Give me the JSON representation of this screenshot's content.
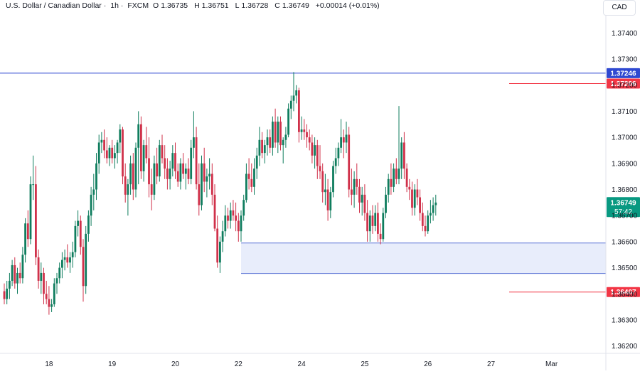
{
  "header": {
    "symbol": "U.S. Dollar / Canadian Dollar",
    "interval": "1h",
    "exchange": "FXCM",
    "open_label": "O",
    "open": "1.36735",
    "high_label": "H",
    "high": "1.36751",
    "low_label": "L",
    "low": "1.36728",
    "close_label": "C",
    "close": "1.36749",
    "change": "+0.00014 (+0.01%)"
  },
  "currency_button": "CAD",
  "colors": {
    "up": "#0f7d5e",
    "down": "#d0314a",
    "zone": "#e8edfb",
    "zone_line": "#5b73d6",
    "level_blue": "#2f49d1",
    "level_red": "#f23645",
    "price_green": "#089981"
  },
  "chart_data": {
    "type": "candlestick",
    "y_ticks": [
      "1.36200",
      "1.36300",
      "1.36400",
      "1.36500",
      "1.36600",
      "1.36700",
      "1.36800",
      "1.36900",
      "1.37000",
      "1.37100",
      "1.37200",
      "1.37300",
      "1.37400"
    ],
    "ylim": [
      1.3615,
      1.3745
    ],
    "x_labels": [
      {
        "label": "18",
        "index": 17
      },
      {
        "label": "19",
        "index": 41
      },
      {
        "label": "20",
        "index": 65
      },
      {
        "label": "22",
        "index": 89
      },
      {
        "label": "24",
        "index": 113
      },
      {
        "label": "25",
        "index": 137
      },
      {
        "label": "26",
        "index": 161
      },
      {
        "label": "27",
        "index": 185
      },
      {
        "label": "Mar",
        "index": 208
      }
    ],
    "horizontal_lines": [
      {
        "value": 1.37246,
        "label": "1.37246",
        "color": "blue",
        "span": "full"
      },
      {
        "value": 1.37206,
        "label": "1.37206",
        "color": "red",
        "span": "right"
      },
      {
        "value": 1.36407,
        "label": "1.36407",
        "color": "red",
        "span": "right"
      }
    ],
    "zone": {
      "top": 1.36595,
      "bottom": 1.36478,
      "start_index": 90
    },
    "last_price": {
      "value": 1.36749,
      "label": "1.36749",
      "countdown": "57:42"
    },
    "candles": [
      [
        1.3641,
        1.3644,
        1.3636,
        1.3638
      ],
      [
        1.3638,
        1.3645,
        1.3636,
        1.3642
      ],
      [
        1.3642,
        1.3648,
        1.3638,
        1.3645
      ],
      [
        1.3645,
        1.3653,
        1.3643,
        1.3651
      ],
      [
        1.3651,
        1.3654,
        1.3642,
        1.3644
      ],
      [
        1.3644,
        1.365,
        1.364,
        1.3648
      ],
      [
        1.3648,
        1.3652,
        1.3644,
        1.3646
      ],
      [
        1.3646,
        1.3658,
        1.3644,
        1.3655
      ],
      [
        1.3655,
        1.3669,
        1.3652,
        1.3667
      ],
      [
        1.3667,
        1.3672,
        1.3658,
        1.3661
      ],
      [
        1.3661,
        1.3685,
        1.3659,
        1.3682
      ],
      [
        1.3682,
        1.3693,
        1.3676,
        1.3682
      ],
      [
        1.3682,
        1.3689,
        1.3651,
        1.3654
      ],
      [
        1.3654,
        1.3657,
        1.3642,
        1.3645
      ],
      [
        1.3645,
        1.3652,
        1.364,
        1.3648
      ],
      [
        1.3648,
        1.365,
        1.3636,
        1.364
      ],
      [
        1.364,
        1.3645,
        1.3636,
        1.3638
      ],
      [
        1.3638,
        1.3643,
        1.3632,
        1.3635
      ],
      [
        1.3635,
        1.3638,
        1.3633,
        1.3636
      ],
      [
        1.3636,
        1.3646,
        1.3635,
        1.3644
      ],
      [
        1.3644,
        1.3648,
        1.364,
        1.3646
      ],
      [
        1.3646,
        1.3652,
        1.3644,
        1.365
      ],
      [
        1.365,
        1.3656,
        1.3646,
        1.3653
      ],
      [
        1.3653,
        1.3657,
        1.3649,
        1.3654
      ],
      [
        1.3654,
        1.3659,
        1.365,
        1.3652
      ],
      [
        1.3652,
        1.3656,
        1.3648,
        1.3654
      ],
      [
        1.3654,
        1.366,
        1.365,
        1.3656
      ],
      [
        1.3656,
        1.3668,
        1.3654,
        1.3666
      ],
      [
        1.3666,
        1.3672,
        1.3662,
        1.3668
      ],
      [
        1.3668,
        1.367,
        1.3655,
        1.3658
      ],
      [
        1.3658,
        1.3661,
        1.3637,
        1.3643
      ],
      [
        1.3643,
        1.3666,
        1.364,
        1.3663
      ],
      [
        1.3663,
        1.3672,
        1.366,
        1.367
      ],
      [
        1.367,
        1.3681,
        1.3666,
        1.3678
      ],
      [
        1.3678,
        1.3686,
        1.3672,
        1.368
      ],
      [
        1.368,
        1.3694,
        1.3676,
        1.369
      ],
      [
        1.369,
        1.3701,
        1.3686,
        1.3698
      ],
      [
        1.3698,
        1.3702,
        1.3694,
        1.3699
      ],
      [
        1.3699,
        1.3703,
        1.3692,
        1.3695
      ],
      [
        1.3695,
        1.37,
        1.369,
        1.3692
      ],
      [
        1.3692,
        1.3697,
        1.3689,
        1.3696
      ],
      [
        1.3696,
        1.3699,
        1.369,
        1.3692
      ],
      [
        1.3692,
        1.3697,
        1.3688,
        1.3694
      ],
      [
        1.3694,
        1.3699,
        1.369,
        1.3698
      ],
      [
        1.3698,
        1.3705,
        1.3694,
        1.3703
      ],
      [
        1.3703,
        1.3704,
        1.3682,
        1.3685
      ],
      [
        1.3685,
        1.369,
        1.3675,
        1.3678
      ],
      [
        1.3678,
        1.3684,
        1.367,
        1.3682
      ],
      [
        1.3682,
        1.3693,
        1.3678,
        1.369
      ],
      [
        1.369,
        1.3694,
        1.3676,
        1.368
      ],
      [
        1.368,
        1.3698,
        1.3677,
        1.3696
      ],
      [
        1.3696,
        1.371,
        1.3682,
        1.3705
      ],
      [
        1.3705,
        1.3708,
        1.3684,
        1.3687
      ],
      [
        1.3687,
        1.3699,
        1.3683,
        1.3697
      ],
      [
        1.3697,
        1.3704,
        1.369,
        1.3692
      ],
      [
        1.3692,
        1.37,
        1.3677,
        1.3682
      ],
      [
        1.3682,
        1.3688,
        1.3672,
        1.3678
      ],
      [
        1.3678,
        1.3693,
        1.3676,
        1.369
      ],
      [
        1.369,
        1.3696,
        1.3682,
        1.3685
      ],
      [
        1.3685,
        1.3699,
        1.3683,
        1.3697
      ],
      [
        1.3697,
        1.3701,
        1.369,
        1.3692
      ],
      [
        1.3692,
        1.3697,
        1.3684,
        1.3688
      ],
      [
        1.3688,
        1.3692,
        1.368,
        1.3684
      ],
      [
        1.3684,
        1.3691,
        1.368,
        1.3688
      ],
      [
        1.3688,
        1.3697,
        1.3685,
        1.3694
      ],
      [
        1.3694,
        1.3698,
        1.3684,
        1.3687
      ],
      [
        1.3687,
        1.369,
        1.3681,
        1.3683
      ],
      [
        1.3683,
        1.3692,
        1.368,
        1.369
      ],
      [
        1.369,
        1.3694,
        1.3684,
        1.3686
      ],
      [
        1.3686,
        1.369,
        1.368,
        1.3688
      ],
      [
        1.3688,
        1.3692,
        1.3682,
        1.3684
      ],
      [
        1.3684,
        1.3699,
        1.3682,
        1.3696
      ],
      [
        1.3696,
        1.371,
        1.3692,
        1.37
      ],
      [
        1.37,
        1.3704,
        1.368,
        1.3682
      ],
      [
        1.3682,
        1.369,
        1.367,
        1.3674
      ],
      [
        1.3674,
        1.3693,
        1.3672,
        1.369
      ],
      [
        1.369,
        1.3696,
        1.3679,
        1.3683
      ],
      [
        1.3683,
        1.3688,
        1.3677,
        1.3685
      ],
      [
        1.3685,
        1.3692,
        1.368,
        1.3686
      ],
      [
        1.3686,
        1.369,
        1.3674,
        1.3678
      ],
      [
        1.3678,
        1.3682,
        1.3664,
        1.3665
      ],
      [
        1.3665,
        1.367,
        1.365,
        1.3652
      ],
      [
        1.3652,
        1.3662,
        1.3648,
        1.366
      ],
      [
        1.366,
        1.3668,
        1.3656,
        1.3664
      ],
      [
        1.3664,
        1.3674,
        1.3662,
        1.367
      ],
      [
        1.367,
        1.3673,
        1.3665,
        1.3668
      ],
      [
        1.3668,
        1.3675,
        1.3665,
        1.3672
      ],
      [
        1.3672,
        1.3676,
        1.3668,
        1.367
      ],
      [
        1.367,
        1.3675,
        1.3664,
        1.3668
      ],
      [
        1.3668,
        1.3671,
        1.366,
        1.3664
      ],
      [
        1.3664,
        1.3672,
        1.366,
        1.367
      ],
      [
        1.367,
        1.3678,
        1.3668,
        1.3676
      ],
      [
        1.3676,
        1.369,
        1.3675,
        1.3686
      ],
      [
        1.3686,
        1.3692,
        1.368,
        1.3684
      ],
      [
        1.3684,
        1.369,
        1.3679,
        1.3681
      ],
      [
        1.3681,
        1.3692,
        1.3678,
        1.3688
      ],
      [
        1.3688,
        1.3696,
        1.3684,
        1.3693
      ],
      [
        1.3693,
        1.3704,
        1.3689,
        1.3699
      ],
      [
        1.3699,
        1.3702,
        1.3692,
        1.3694
      ],
      [
        1.3694,
        1.3699,
        1.369,
        1.3697
      ],
      [
        1.3697,
        1.3703,
        1.3693,
        1.37
      ],
      [
        1.37,
        1.3703,
        1.3694,
        1.3696
      ],
      [
        1.3696,
        1.3708,
        1.3693,
        1.3706
      ],
      [
        1.3706,
        1.3711,
        1.3696,
        1.3698
      ],
      [
        1.3698,
        1.3708,
        1.3694,
        1.3706
      ],
      [
        1.3706,
        1.3708,
        1.3695,
        1.3697
      ],
      [
        1.3697,
        1.37,
        1.369,
        1.3699
      ],
      [
        1.3699,
        1.3704,
        1.3696,
        1.3701
      ],
      [
        1.3701,
        1.3713,
        1.37,
        1.3711
      ],
      [
        1.3711,
        1.3716,
        1.3707,
        1.3714
      ],
      [
        1.3714,
        1.3725,
        1.371,
        1.3716
      ],
      [
        1.3716,
        1.372,
        1.3713,
        1.3718
      ],
      [
        1.3718,
        1.3719,
        1.3698,
        1.3702
      ],
      [
        1.3702,
        1.3708,
        1.3699,
        1.3703
      ],
      [
        1.3703,
        1.3707,
        1.3699,
        1.3702
      ],
      [
        1.3702,
        1.3705,
        1.3696,
        1.37
      ],
      [
        1.37,
        1.3703,
        1.3695,
        1.3698
      ],
      [
        1.3698,
        1.3701,
        1.369,
        1.3693
      ],
      [
        1.3693,
        1.37,
        1.3688,
        1.3697
      ],
      [
        1.3697,
        1.3699,
        1.3684,
        1.3689
      ],
      [
        1.3689,
        1.3697,
        1.3684,
        1.3687
      ],
      [
        1.3687,
        1.369,
        1.3675,
        1.3679
      ],
      [
        1.3679,
        1.3686,
        1.3674,
        1.368
      ],
      [
        1.368,
        1.3684,
        1.3668,
        1.3672
      ],
      [
        1.3672,
        1.3681,
        1.3669,
        1.3679
      ],
      [
        1.3679,
        1.3691,
        1.3677,
        1.3689
      ],
      [
        1.3689,
        1.3696,
        1.3686,
        1.3692
      ],
      [
        1.3692,
        1.3698,
        1.3689,
        1.3696
      ],
      [
        1.3696,
        1.3707,
        1.3694,
        1.37
      ],
      [
        1.37,
        1.3703,
        1.3692,
        1.3698
      ],
      [
        1.3698,
        1.3706,
        1.3694,
        1.3701
      ],
      [
        1.3701,
        1.3704,
        1.3677,
        1.368
      ],
      [
        1.368,
        1.3688,
        1.3674,
        1.3678
      ],
      [
        1.3678,
        1.3687,
        1.3673,
        1.3684
      ],
      [
        1.3684,
        1.369,
        1.3678,
        1.3681
      ],
      [
        1.3681,
        1.3684,
        1.3671,
        1.3675
      ],
      [
        1.3675,
        1.3681,
        1.367,
        1.3678
      ],
      [
        1.3678,
        1.3682,
        1.3668,
        1.3671
      ],
      [
        1.3671,
        1.3676,
        1.366,
        1.3664
      ],
      [
        1.3664,
        1.3672,
        1.366,
        1.367
      ],
      [
        1.367,
        1.3674,
        1.3663,
        1.3666
      ],
      [
        1.3666,
        1.3674,
        1.3664,
        1.3671
      ],
      [
        1.3671,
        1.3675,
        1.366,
        1.3663
      ],
      [
        1.3663,
        1.3667,
        1.3659,
        1.3661
      ],
      [
        1.3661,
        1.3673,
        1.366,
        1.3671
      ],
      [
        1.3671,
        1.3681,
        1.3669,
        1.3678
      ],
      [
        1.3678,
        1.3686,
        1.3675,
        1.3684
      ],
      [
        1.3684,
        1.369,
        1.3678,
        1.3681
      ],
      [
        1.3681,
        1.369,
        1.3679,
        1.3688
      ],
      [
        1.3688,
        1.3692,
        1.3682,
        1.3684
      ],
      [
        1.3684,
        1.3712,
        1.3682,
        1.3688
      ],
      [
        1.3688,
        1.37,
        1.3684,
        1.3698
      ],
      [
        1.3698,
        1.3702,
        1.3684,
        1.3688
      ],
      [
        1.3688,
        1.369,
        1.3679,
        1.3681
      ],
      [
        1.3681,
        1.3684,
        1.3676,
        1.368
      ],
      [
        1.368,
        1.3683,
        1.367,
        1.3673
      ],
      [
        1.3673,
        1.3682,
        1.367,
        1.368
      ],
      [
        1.368,
        1.3684,
        1.3674,
        1.3677
      ],
      [
        1.3677,
        1.368,
        1.3668,
        1.3671
      ],
      [
        1.3671,
        1.3675,
        1.3664,
        1.3666
      ],
      [
        1.3666,
        1.367,
        1.3662,
        1.3664
      ],
      [
        1.3664,
        1.3672,
        1.3663,
        1.367
      ],
      [
        1.367,
        1.3676,
        1.3667,
        1.3671
      ],
      [
        1.3671,
        1.3677,
        1.3668,
        1.3674
      ],
      [
        1.3674,
        1.3678,
        1.367,
        1.3675
      ]
    ]
  }
}
